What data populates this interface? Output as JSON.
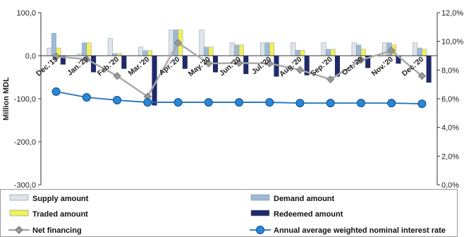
{
  "chart_data": {
    "type": "bar",
    "ylabel": "Million MDL",
    "ylim": [
      -300,
      100
    ],
    "y_ticks": [
      "100,0",
      "0,0",
      "-100,0",
      "-200,0",
      "-300,0"
    ],
    "y2lim": [
      0,
      12
    ],
    "y2_ticks": [
      "12,0%",
      "10,0%",
      "8,0%",
      "6,0%",
      "4,0%",
      "2,0%",
      "0,0%"
    ],
    "categories": [
      "Dec.'19",
      "Jan.'20",
      "Feb.'20",
      "Mar.'20",
      "Apr.'20",
      "May.'20",
      "Jun.'20",
      "Jul.'20",
      "Aug.'20",
      "Sep.'20",
      "Oct.'20",
      "Nov.'20",
      "Dec.'20"
    ],
    "series": [
      {
        "name": "Supply amount",
        "kind": "bar",
        "axis": "left",
        "color": "#dfe4ea",
        "values": [
          18,
          5,
          40,
          20,
          60,
          60,
          30,
          30,
          30,
          30,
          30,
          30,
          30
        ]
      },
      {
        "name": "Demand amount",
        "kind": "bar",
        "axis": "left",
        "color": "#9dbad6",
        "values": [
          52,
          30,
          5,
          12,
          60,
          20,
          25,
          30,
          13,
          15,
          25,
          30,
          18
        ]
      },
      {
        "name": "Traded amount",
        "kind": "bar",
        "axis": "left",
        "color": "#f2f25a",
        "values": [
          18,
          30,
          5,
          12,
          60,
          20,
          25,
          30,
          13,
          15,
          15,
          25,
          15
        ]
      },
      {
        "name": "Redeemed amount",
        "kind": "bar",
        "axis": "left",
        "color": "#1f2a6b",
        "values": [
          -20,
          -38,
          -30,
          -115,
          -30,
          -38,
          -42,
          -48,
          -45,
          -48,
          -28,
          -18,
          -62
        ]
      },
      {
        "name": "Net financing",
        "kind": "line",
        "axis": "left",
        "color": "#a8a8a8",
        "values": [
          -2,
          -8,
          -47,
          -95,
          30,
          -18,
          -17,
          -18,
          -33,
          -55,
          -10,
          12,
          -47
        ]
      },
      {
        "name": "Annual average weighted nominal interest rate",
        "kind": "line",
        "axis": "right",
        "color": "#1e6fbf",
        "values": [
          6.5,
          6.1,
          5.9,
          5.75,
          5.75,
          5.75,
          5.75,
          5.75,
          5.7,
          5.7,
          5.7,
          5.7,
          5.65
        ]
      }
    ],
    "legend": "bottom",
    "grid": false
  }
}
